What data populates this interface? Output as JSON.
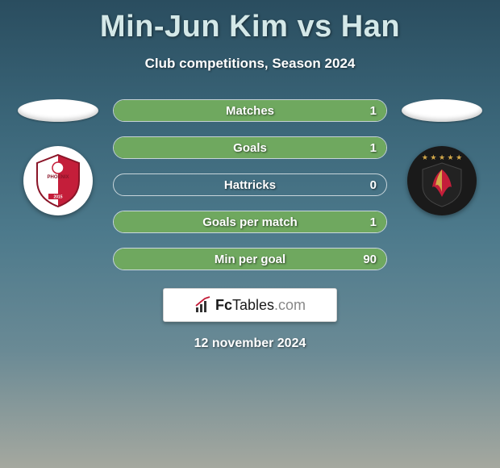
{
  "title": "Min-Jun Kim vs Han",
  "subtitle": "Club competitions, Season 2024",
  "stats": [
    {
      "label": "Matches",
      "right_value": "1",
      "fill_pct": 100,
      "fill_color": "#6fa85f"
    },
    {
      "label": "Goals",
      "right_value": "1",
      "fill_pct": 100,
      "fill_color": "#6fa85f"
    },
    {
      "label": "Hattricks",
      "right_value": "0",
      "fill_pct": 0,
      "fill_color": "#6fa85f"
    },
    {
      "label": "Goals per match",
      "right_value": "1",
      "fill_pct": 100,
      "fill_color": "#6fa85f"
    },
    {
      "label": "Min per goal",
      "right_value": "90",
      "fill_pct": 100,
      "fill_color": "#6fa85f"
    }
  ],
  "logo": {
    "fc": "Fc",
    "tables": "Tables",
    "com": ".com"
  },
  "date": "12 november 2024",
  "colors": {
    "title_color": "#d4e8e8",
    "text_color": "#ffffff",
    "crest_left_bg": "#ffffff",
    "crest_right_bg": "#1a1a1a",
    "crest_left_shield": "#c41e3a",
    "crest_right_shield": "#222222",
    "star_color": "#d4a94a"
  }
}
